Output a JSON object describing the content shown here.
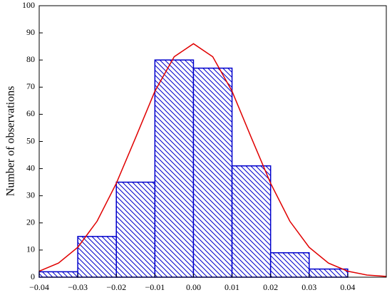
{
  "chart_data": {
    "type": "histogram",
    "ylabel": "Number of observations",
    "bins": [
      -0.04,
      -0.03,
      -0.02,
      -0.01,
      0,
      0.01,
      0.02,
      0.03,
      0.04
    ],
    "counts": [
      2,
      15,
      35,
      80,
      77,
      41,
      9,
      3
    ],
    "color": "#0000cc",
    "hatch": true,
    "curve": {
      "type": "line",
      "color": "#e00000",
      "x": [
        -0.04,
        -0.035,
        -0.03,
        -0.025,
        -0.02,
        -0.015,
        -0.01,
        -0.005,
        0,
        0.005,
        0.01,
        0.015,
        0.02,
        0.025,
        0.03,
        0.035,
        0.04,
        0.045,
        0.05
      ],
      "y": [
        2.2,
        5.2,
        11.0,
        20.6,
        34.6,
        51.4,
        68.5,
        81.2,
        86,
        81.2,
        68.5,
        51.4,
        34.6,
        20.6,
        11.0,
        5.2,
        2.2,
        0.8,
        0.3
      ]
    },
    "xlim": [
      -0.04,
      0.05
    ],
    "xticks": [
      {
        "value": -0.04,
        "label": "−0.04"
      },
      {
        "value": -0.03,
        "label": "−0.03"
      },
      {
        "value": -0.02,
        "label": "−0.02"
      },
      {
        "value": -0.01,
        "label": "−0.01"
      },
      {
        "value": 0,
        "label": "0.00"
      },
      0.01,
      0.02,
      0.03,
      0.04
    ],
    "ylim": [
      0,
      100
    ],
    "yticks": [
      0,
      10,
      20,
      30,
      40,
      50,
      60,
      70,
      80,
      90,
      100
    ]
  }
}
